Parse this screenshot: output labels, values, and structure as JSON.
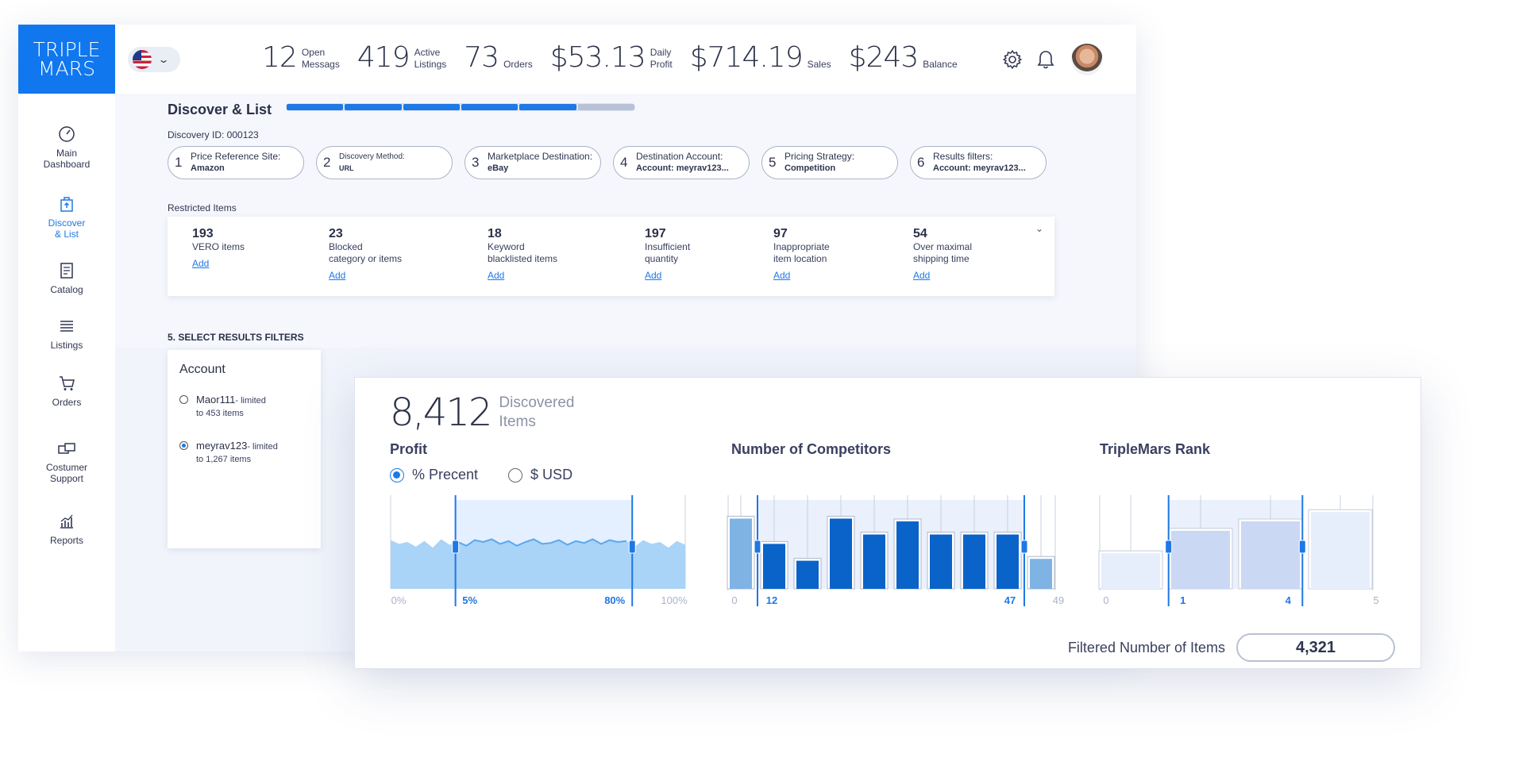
{
  "brand": {
    "line1": "TRIPLE",
    "line2": "MARS",
    "color": "#1177ee"
  },
  "colors": {
    "accent": "#1e78e6",
    "dark_bar": "#0a63c9",
    "light_bar": "#7fb3e4",
    "area": "#a9d3f7"
  },
  "topbar": {
    "stats": [
      {
        "value": "12",
        "label1": "Open",
        "label2": "Messags"
      },
      {
        "value": "419",
        "label1": "Active",
        "label2": "Listings"
      },
      {
        "value": "73",
        "label1": "",
        "label2": "Orders"
      },
      {
        "value": "$53.13",
        "label1": "Daily",
        "label2": "Profit"
      },
      {
        "value": "$714.19",
        "label1": "",
        "label2": "Sales"
      },
      {
        "value": "$243",
        "label1": "",
        "label2": "Balance"
      }
    ],
    "icons": [
      "flag-us-icon",
      "chevron-down-icon",
      "gear-icon",
      "bell-icon",
      "avatar"
    ]
  },
  "sidebar": {
    "items": [
      {
        "line1": "Main",
        "line2": "Dashboard",
        "icon": "speedometer-icon"
      },
      {
        "line1": "Discover",
        "line2": "& List",
        "icon": "bag-upload-icon"
      },
      {
        "line1": "Catalog",
        "line2": "",
        "icon": "document-icon"
      },
      {
        "line1": "Listings",
        "line2": "",
        "icon": "list-icon"
      },
      {
        "line1": "Orders",
        "line2": "",
        "icon": "cart-icon"
      },
      {
        "line1": "Costumer",
        "line2": "Support",
        "icon": "support-icon"
      },
      {
        "line1": "Reports",
        "line2": "",
        "icon": "chart-icon"
      }
    ]
  },
  "discover": {
    "title": "Discover & List",
    "progress_done": 5,
    "progress_total": 6,
    "discovery_id": "Discovery ID: 000123",
    "steps": [
      {
        "num": "1",
        "title": "Price Reference Site:",
        "value": "Amazon"
      },
      {
        "num": "2",
        "title": "Discovery Method:",
        "value": "URL"
      },
      {
        "num": "3",
        "title": "Marketplace Destination:",
        "value": "eBay"
      },
      {
        "num": "4",
        "title": "Destination Account:",
        "value": "Account: meyrav123..."
      },
      {
        "num": "5",
        "title": "Pricing Strategy:",
        "value": "Competition"
      },
      {
        "num": "6",
        "title": "Results filters:",
        "value": "Account: meyrav123..."
      }
    ],
    "restricted_label": "Restricted Items",
    "restricted": [
      {
        "count": "193",
        "line1": "VERO items",
        "line2": "",
        "add": "Add"
      },
      {
        "count": "23",
        "line1": "Blocked",
        "line2": "category or items",
        "add": "Add"
      },
      {
        "count": "18",
        "line1": "Keyword",
        "line2": "blacklisted items",
        "add": "Add"
      },
      {
        "count": "197",
        "line1": "Insufficient",
        "line2": "quantity",
        "add": "Add"
      },
      {
        "count": "97",
        "line1": "Inappropriate",
        "line2": "item location",
        "add": "Add"
      },
      {
        "count": "54",
        "line1": "Over maximal",
        "line2": "shipping time",
        "add": "Add"
      }
    ]
  },
  "filters": {
    "section_label": "5. SELECT RESULTS FILTERS",
    "account_title": "Account",
    "accounts": [
      {
        "name": "Maor111",
        "suffix": "- limited",
        "line2": "to 453 items",
        "selected": false
      },
      {
        "name": "meyrav123",
        "suffix": "- limited",
        "line2": "to 1,267 items",
        "selected": true
      }
    ]
  },
  "panel": {
    "discovered_count": "8,412",
    "discovered_label1": "Discovered",
    "discovered_label2": "Items",
    "profit_title": "Profit",
    "profit_options": [
      {
        "label": "% Precent",
        "selected": true
      },
      {
        "label": "$ USD",
        "selected": false
      }
    ],
    "competitors_title": "Number of Competitors",
    "rank_title": "TripleMars Rank",
    "filtered_label": "Filtered Number of Items",
    "filtered_value": "4,321"
  },
  "chart_data": [
    {
      "type": "area",
      "title": "Profit",
      "x_ticks": [
        "0%",
        "5%",
        "80%",
        "100%"
      ],
      "x_ticks_selected": [
        "5%",
        "80%"
      ],
      "range": [
        0,
        100
      ],
      "selected_range": [
        5,
        80
      ],
      "values": [
        52,
        48,
        50,
        45,
        51,
        44,
        53,
        47,
        50,
        46,
        52,
        50,
        53,
        48,
        51,
        46,
        50,
        53,
        48,
        49,
        52,
        47,
        51,
        49,
        53,
        48,
        52,
        50,
        51,
        45,
        52,
        48,
        50,
        44,
        51,
        47
      ]
    },
    {
      "type": "bar",
      "title": "Number of Competitors",
      "x_ticks": [
        "0",
        "12",
        "47",
        "49"
      ],
      "x_ticks_selected": [
        "12",
        "47"
      ],
      "selected_range": [
        12,
        47
      ],
      "values": [
        75,
        48,
        30,
        75,
        58,
        72,
        58,
        58,
        58,
        32
      ],
      "selected": [
        false,
        true,
        true,
        true,
        true,
        true,
        true,
        true,
        true,
        false
      ]
    },
    {
      "type": "bar",
      "title": "TripleMars Rank",
      "x_ticks": [
        "0",
        "1",
        "4",
        "5"
      ],
      "x_ticks_selected": [
        "1",
        "4"
      ],
      "selected_range": [
        1,
        4
      ],
      "values": [
        38,
        62,
        72,
        82
      ],
      "selected": [
        false,
        true,
        true,
        false
      ]
    }
  ]
}
